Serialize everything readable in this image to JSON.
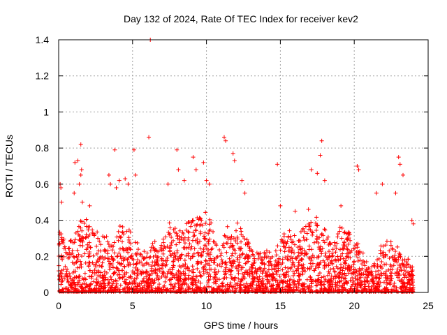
{
  "chart_data": {
    "type": "scatter",
    "title": "Day 132 of 2024, Rate Of TEC Index for receiver kev2",
    "xlabel": "GPS time / hours",
    "ylabel": "ROTI / TECUs",
    "xlim": [
      0,
      25
    ],
    "ylim": [
      0,
      1.4
    ],
    "x_ticks": [
      "0",
      "5",
      "10",
      "15",
      "20",
      "25"
    ],
    "y_ticks": [
      "0",
      "0.2",
      "0.4",
      "0.6",
      "0.8",
      "1",
      "1.2",
      "1.4"
    ],
    "grid": true,
    "marker": "plus",
    "colors": {
      "series": "#ff0000",
      "grid": "#a0a0a0",
      "axis": "#000000"
    },
    "envelope": {
      "description": "approximate upper bound of the dense point cloud vs GPS time (hours)",
      "x": [
        0,
        0.5,
        1,
        1.5,
        2,
        2.5,
        3,
        3.5,
        4,
        4.5,
        5,
        5.5,
        6,
        6.5,
        7,
        7.5,
        8,
        8.5,
        9,
        9.5,
        10,
        10.5,
        11,
        11.5,
        12,
        12.5,
        13,
        13.5,
        14,
        14.5,
        15,
        15.5,
        16,
        16.5,
        17,
        17.5,
        18,
        18.5,
        19,
        19.5,
        20,
        20.5,
        21,
        21.5,
        22,
        22.5,
        23,
        23.5,
        24
      ],
      "y": [
        0.35,
        0.28,
        0.3,
        0.4,
        0.42,
        0.35,
        0.32,
        0.3,
        0.38,
        0.4,
        0.35,
        0.25,
        0.22,
        0.3,
        0.28,
        0.4,
        0.35,
        0.38,
        0.4,
        0.42,
        0.45,
        0.35,
        0.3,
        0.38,
        0.4,
        0.35,
        0.25,
        0.22,
        0.25,
        0.22,
        0.3,
        0.35,
        0.32,
        0.35,
        0.4,
        0.42,
        0.35,
        0.3,
        0.38,
        0.35,
        0.3,
        0.25,
        0.15,
        0.2,
        0.3,
        0.28,
        0.25,
        0.2,
        0.15
      ]
    },
    "outliers": {
      "x": [
        0.1,
        0.15,
        0.2,
        1.05,
        1.1,
        1.3,
        1.4,
        1.5,
        1.5,
        1.55,
        1.6,
        2.1,
        3.4,
        3.5,
        3.8,
        3.9,
        4.1,
        4.5,
        4.7,
        5.1,
        5.2,
        6.2,
        6.1,
        7.4,
        8.0,
        8.1,
        8.5,
        9.1,
        9.3,
        9.8,
        10.0,
        10.2,
        11.2,
        11.3,
        11.8,
        11.9,
        12.4,
        12.6,
        14.8,
        15.0,
        16.0,
        16.9,
        17.1,
        17.5,
        17.7,
        17.8,
        18.0,
        19.1,
        20.2,
        20.3,
        21.5,
        21.9,
        22.8,
        23.0,
        23.1,
        23.3,
        23.9,
        24.0
      ],
      "y": [
        0.6,
        0.58,
        0.5,
        0.55,
        0.72,
        0.73,
        0.6,
        0.82,
        0.65,
        0.68,
        0.5,
        0.48,
        0.65,
        0.6,
        0.79,
        0.58,
        0.62,
        0.63,
        0.6,
        0.79,
        0.65,
        1.4,
        0.86,
        0.6,
        0.79,
        0.68,
        0.62,
        0.75,
        0.68,
        0.72,
        0.62,
        0.6,
        0.86,
        0.84,
        0.77,
        0.73,
        0.62,
        0.55,
        0.71,
        0.48,
        0.45,
        0.46,
        0.68,
        0.66,
        0.76,
        0.84,
        0.62,
        0.48,
        0.7,
        0.68,
        0.55,
        0.6,
        0.55,
        0.75,
        0.71,
        0.65,
        0.4,
        0.38
      ]
    }
  }
}
